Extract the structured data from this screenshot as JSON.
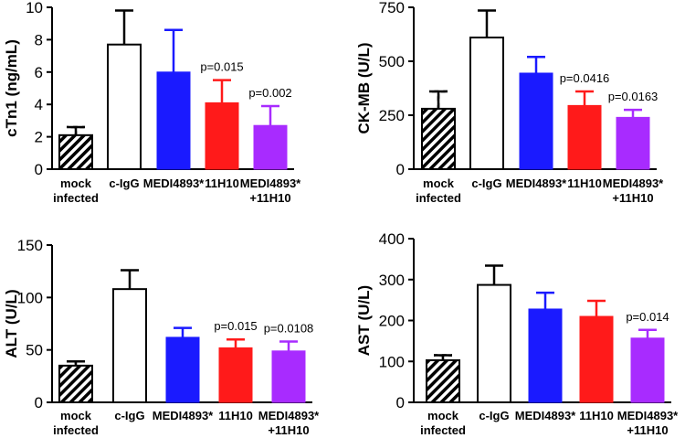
{
  "chart_data": [
    {
      "type": "bar",
      "ylabel": "cTn1 (ng/mL)",
      "ylim": [
        0,
        10
      ],
      "yticks": [
        0,
        2,
        4,
        6,
        8,
        10
      ],
      "categories": [
        [
          "mock",
          "infected"
        ],
        [
          "c-IgG"
        ],
        [
          "MEDI4893*"
        ],
        [
          "11H10"
        ],
        [
          "MEDI4893*",
          "+11H10"
        ]
      ],
      "values": [
        2.1,
        7.7,
        6.0,
        4.1,
        2.7
      ],
      "errors": [
        0.5,
        2.1,
        2.6,
        1.4,
        1.2
      ],
      "pvalues": [
        "",
        "",
        "",
        "p=0.015",
        "p=0.002"
      ]
    },
    {
      "type": "bar",
      "ylabel": "CK-MB (U/L)",
      "ylim": [
        0,
        750
      ],
      "yticks": [
        0,
        250,
        500,
        750
      ],
      "categories": [
        [
          "mock",
          "infected"
        ],
        [
          "c-IgG"
        ],
        [
          "MEDI4893*"
        ],
        [
          "11H10"
        ],
        [
          "MEDI4893*",
          "+11H10"
        ]
      ],
      "values": [
        280,
        610,
        445,
        295,
        240
      ],
      "errors": [
        80,
        125,
        75,
        65,
        35
      ],
      "pvalues": [
        "",
        "",
        "",
        "p=0.0416",
        "p=0.0163"
      ]
    },
    {
      "type": "bar",
      "ylabel": "ALT (U/L)",
      "ylim": [
        0,
        150
      ],
      "yticks": [
        0,
        50,
        100,
        150
      ],
      "categories": [
        [
          "mock",
          "infected"
        ],
        [
          "c-IgG"
        ],
        [
          "MEDI4893*"
        ],
        [
          "11H10"
        ],
        [
          "MEDI4893*",
          "+11H10"
        ]
      ],
      "values": [
        35,
        108,
        62,
        52,
        49
      ],
      "errors": [
        4,
        18,
        9,
        8,
        9
      ],
      "pvalues": [
        "",
        "",
        "",
        "p=0.015",
        "p=0.0108"
      ]
    },
    {
      "type": "bar",
      "ylabel": "AST (U/L)",
      "ylim": [
        0,
        400
      ],
      "yticks": [
        0,
        100,
        200,
        300,
        400
      ],
      "categories": [
        [
          "mock",
          "infected"
        ],
        [
          "c-IgG"
        ],
        [
          "MEDI4893*"
        ],
        [
          "11H10"
        ],
        [
          "MEDI4893*",
          "+11H10"
        ]
      ],
      "values": [
        103,
        287,
        228,
        210,
        157
      ],
      "errors": [
        12,
        47,
        40,
        38,
        20
      ],
      "pvalues": [
        "",
        "",
        "",
        "",
        "p=0.014"
      ]
    }
  ],
  "colors": {
    "mock": "hatched",
    "c-IgG": "#ffffff",
    "MEDI4893*": "#1a1aff",
    "11H10": "#ff1a1a",
    "MEDI4893*+11H10": "#a82bff"
  }
}
